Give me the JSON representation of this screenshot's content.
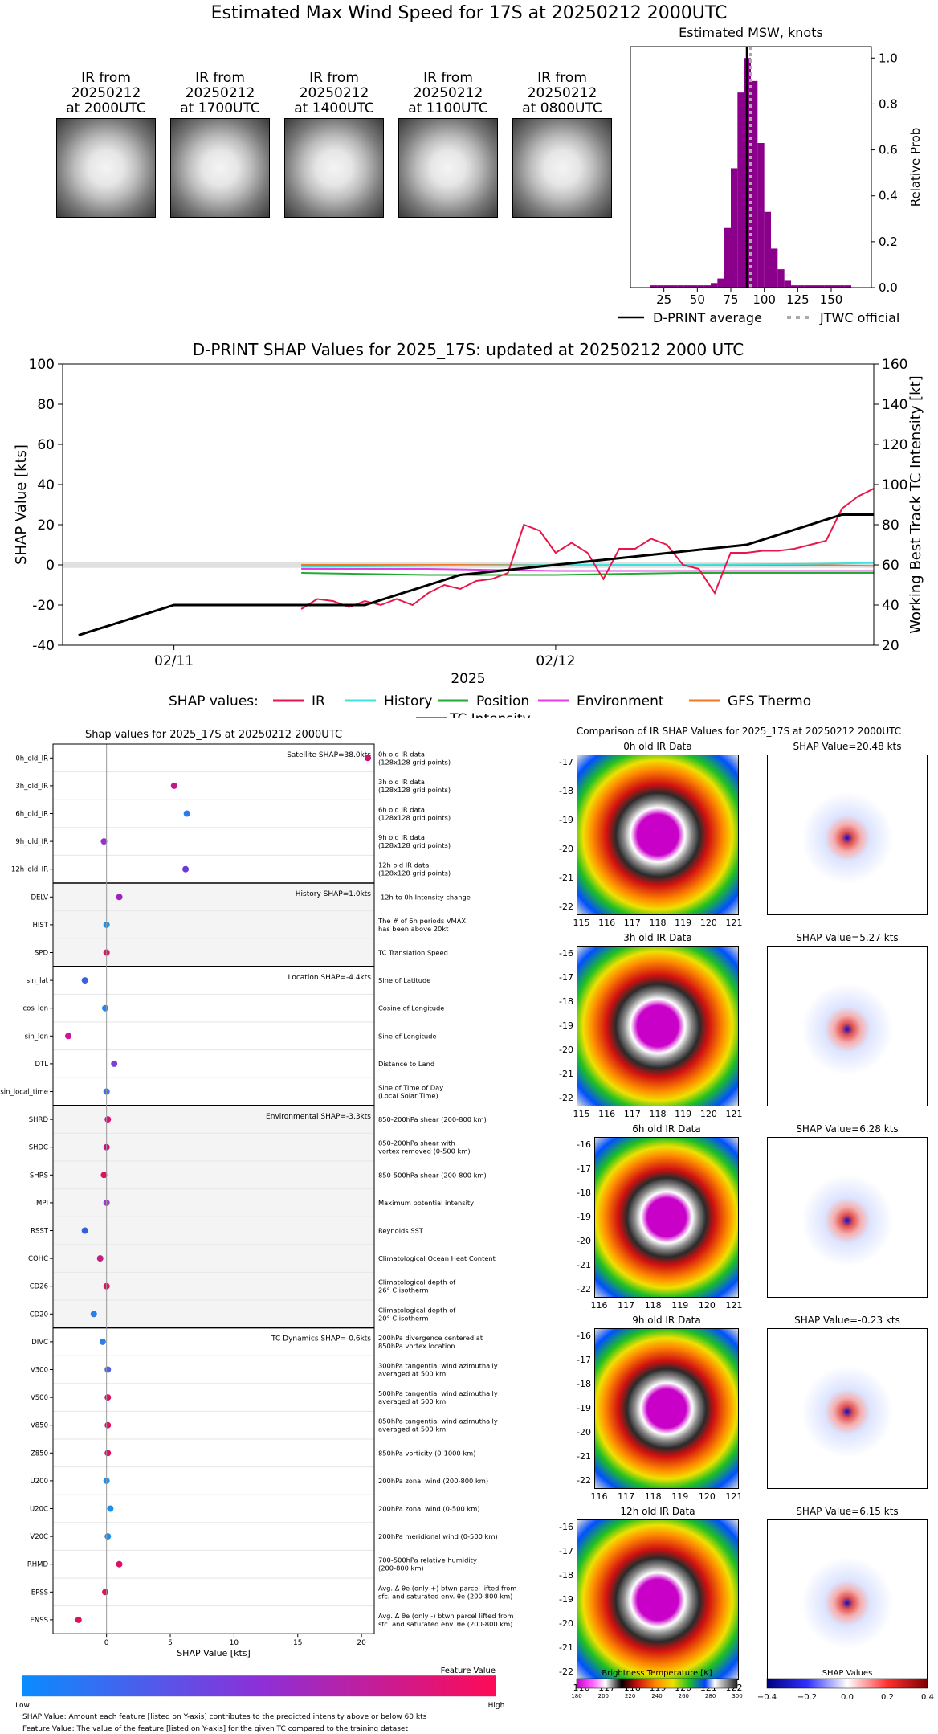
{
  "top": {
    "main_title": "Estimated Max Wind Speed for 17S at 20250212 2000UTC",
    "images": [
      {
        "label_lines": [
          "IR from",
          "20250212",
          "at 2000UTC"
        ]
      },
      {
        "label_lines": [
          "IR from",
          "20250212",
          "at 1700UTC"
        ]
      },
      {
        "label_lines": [
          "IR from",
          "20250212",
          "at 1400UTC"
        ]
      },
      {
        "label_lines": [
          "IR from",
          "20250212",
          "at 1100UTC"
        ]
      },
      {
        "label_lines": [
          "IR from",
          "20250212",
          "at 0800UTC"
        ]
      }
    ]
  },
  "histogram": {
    "type": "bar",
    "title": "Estimated MSW, knots",
    "ylabel": "Relative Prob",
    "color": "#8b008b",
    "bin_width": 5,
    "xlim": [
      0,
      180
    ],
    "ylim": [
      0,
      1.05
    ],
    "x_ticks": [
      25,
      50,
      75,
      100,
      125,
      150
    ],
    "y_ticks": [
      "0.0",
      "0.2",
      "0.4",
      "0.6",
      "0.8",
      "1.0"
    ],
    "bins": [
      {
        "x": 15,
        "y": 0.01
      },
      {
        "x": 20,
        "y": 0.01
      },
      {
        "x": 25,
        "y": 0.01
      },
      {
        "x": 30,
        "y": 0.01
      },
      {
        "x": 35,
        "y": 0.01
      },
      {
        "x": 40,
        "y": 0.01
      },
      {
        "x": 45,
        "y": 0.01
      },
      {
        "x": 50,
        "y": 0.01
      },
      {
        "x": 55,
        "y": 0.01
      },
      {
        "x": 60,
        "y": 0.02
      },
      {
        "x": 65,
        "y": 0.04
      },
      {
        "x": 70,
        "y": 0.26
      },
      {
        "x": 75,
        "y": 0.52
      },
      {
        "x": 80,
        "y": 0.85
      },
      {
        "x": 85,
        "y": 1.0
      },
      {
        "x": 90,
        "y": 0.9
      },
      {
        "x": 95,
        "y": 0.63
      },
      {
        "x": 100,
        "y": 0.33
      },
      {
        "x": 105,
        "y": 0.17
      },
      {
        "x": 110,
        "y": 0.08
      },
      {
        "x": 115,
        "y": 0.03
      },
      {
        "x": 120,
        "y": 0.01
      },
      {
        "x": 125,
        "y": 0.01
      },
      {
        "x": 130,
        "y": 0.01
      },
      {
        "x": 135,
        "y": 0.01
      },
      {
        "x": 140,
        "y": 0.01
      },
      {
        "x": 145,
        "y": 0.01
      },
      {
        "x": 150,
        "y": 0.01
      },
      {
        "x": 155,
        "y": 0.01
      },
      {
        "x": 160,
        "y": 0.01
      }
    ],
    "dprint_average": 87,
    "jtwc_official": 90,
    "legend": [
      "D-PRINT average",
      "JTWC official"
    ]
  },
  "shap_timeseries": {
    "type": "line",
    "title": "D-PRINT SHAP Values for 2025_17S: updated at 20250212 2000 UTC",
    "ylabel_left": "SHAP Value [kts]",
    "ylabel_right": "Working Best Track TC Intensity [kt]",
    "xlabel": "2025",
    "x_tick_labels": [
      "02/11",
      "02/12"
    ],
    "x_tick_hours": [
      24,
      48
    ],
    "xlim_hours": [
      17,
      68
    ],
    "ylim_left": [
      -40,
      100
    ],
    "ylim_right": [
      20,
      160
    ],
    "y_ticks_left": [
      -40,
      -20,
      0,
      20,
      40,
      60,
      80,
      100
    ],
    "y_ticks_right": [
      20,
      40,
      60,
      80,
      100,
      120,
      140,
      160
    ],
    "legend_prefix": "SHAP values:",
    "series": [
      {
        "name": "IR",
        "color": "#e8174a",
        "hours": [
          32,
          33,
          34,
          35,
          36,
          37,
          38,
          39,
          40,
          41,
          42,
          43,
          44,
          45,
          46,
          47,
          48,
          49,
          50,
          51,
          52,
          53,
          54,
          55,
          56,
          57,
          58,
          59,
          60,
          61,
          62,
          63,
          64,
          65,
          66,
          67,
          68
        ],
        "values": [
          -22,
          -17,
          -18,
          -21,
          -18,
          -20,
          -17,
          -20,
          -14,
          -10,
          -12,
          -8,
          -7,
          -4,
          20,
          17,
          6,
          11,
          6,
          -7,
          8,
          8,
          13,
          10,
          0,
          -2,
          -14,
          6,
          6,
          7,
          7,
          8,
          10,
          12,
          28,
          34,
          38
        ]
      },
      {
        "name": "History",
        "color": "#40e0e0",
        "hours": [
          32,
          40,
          48,
          56,
          64,
          68
        ],
        "values": [
          -1,
          -0.5,
          0,
          0,
          0.5,
          1
        ]
      },
      {
        "name": "Position",
        "color": "#22aa33",
        "hours": [
          32,
          40,
          48,
          56,
          64,
          68
        ],
        "values": [
          -4,
          -5,
          -5,
          -4,
          -4,
          -4
        ]
      },
      {
        "name": "Environment",
        "color": "#e040e0",
        "hours": [
          32,
          40,
          48,
          56,
          64,
          68
        ],
        "values": [
          -2,
          -2,
          -3,
          -3,
          -3,
          -3
        ]
      },
      {
        "name": "GFS Thermo",
        "color": "#f07820",
        "hours": [
          32,
          40,
          48,
          56,
          64,
          68
        ],
        "values": [
          0,
          0,
          0,
          0,
          0,
          -0.5
        ]
      }
    ],
    "intensity": {
      "name": "TC Intensity",
      "color": "#000000",
      "hours": [
        18,
        24,
        36,
        42,
        48,
        54,
        60,
        66,
        68
      ],
      "values": [
        25,
        40,
        40,
        55,
        60,
        65,
        70,
        85,
        85
      ]
    }
  },
  "shap_dots": {
    "type": "scatter",
    "title": "Shap values for 2025_17S at 20250212 2000UTC",
    "xlabel": "SHAP Value [kts]",
    "xlim": [
      -4.2,
      21
    ],
    "x_ticks": [
      0,
      5,
      10,
      15,
      20
    ],
    "groups": [
      {
        "label": "Satellite SHAP=38.0kts",
        "shaded": false,
        "features": [
          {
            "name": "0h_old_IR",
            "value": 20.5,
            "desc": [
              "0h old IR data",
              "(128x128 grid points)"
            ],
            "color": "#d0106a"
          },
          {
            "name": "3h_old_IR",
            "value": 5.3,
            "desc": [
              "3h old IR data",
              "(128x128 grid points)"
            ],
            "color": "#c0188a"
          },
          {
            "name": "6h_old_IR",
            "value": 6.3,
            "desc": [
              "6h old IR data",
              "(128x128 grid points)"
            ],
            "color": "#2a7ae8"
          },
          {
            "name": "9h_old_IR",
            "value": -0.2,
            "desc": [
              "9h old IR data",
              "(128x128 grid points)"
            ],
            "color": "#9a30c8"
          },
          {
            "name": "12h_old_IR",
            "value": 6.2,
            "desc": [
              "12h old IR data",
              "(128x128 grid points)"
            ],
            "color": "#6a3ad8"
          }
        ]
      },
      {
        "label": "History SHAP=1.0kts",
        "shaded": true,
        "features": [
          {
            "name": "DELV",
            "value": 1.0,
            "desc": [
              "-12h to 0h Intensity change"
            ],
            "color": "#a020c0"
          },
          {
            "name": "HIST",
            "value": 0.0,
            "desc": [
              "The # of 6h periods VMAX",
              "has been above 20kt"
            ],
            "color": "#1890f0"
          },
          {
            "name": "SPD",
            "value": 0.0,
            "desc": [
              "TC Translation Speed"
            ],
            "color": "#e01060"
          }
        ]
      },
      {
        "label": "Location SHAP=-4.4kts",
        "shaded": false,
        "features": [
          {
            "name": "sin_lat",
            "value": -1.7,
            "desc": [
              "Sine of Latitude"
            ],
            "color": "#3a60e0"
          },
          {
            "name": "cos_lon",
            "value": -0.1,
            "desc": [
              "Cosine of Longitude"
            ],
            "color": "#1a88f0"
          },
          {
            "name": "sin_lon",
            "value": -3.0,
            "desc": [
              "Sine of Longitude"
            ],
            "color": "#d010a0"
          },
          {
            "name": "DTL",
            "value": 0.6,
            "desc": [
              "Distance to Land"
            ],
            "color": "#7a40d8"
          },
          {
            "name": "sin_local_time",
            "value": 0.0,
            "desc": [
              "Sine of Time of Day",
              "(Local Solar Time)"
            ],
            "color": "#3a70e8"
          }
        ]
      },
      {
        "label": "Environmental SHAP=-3.3kts",
        "shaded": true,
        "features": [
          {
            "name": "SHRD",
            "value": 0.1,
            "desc": [
              "850-200hPa shear (200-800 km)"
            ],
            "color": "#e01070"
          },
          {
            "name": "SHDC",
            "value": 0.0,
            "desc": [
              "850-200hPa shear with",
              "vortex removed (0-500 km)"
            ],
            "color": "#d01080"
          },
          {
            "name": "SHRS",
            "value": -0.2,
            "desc": [
              "850-500hPa shear (200-800 km)"
            ],
            "color": "#e01060"
          },
          {
            "name": "MPI",
            "value": 0.0,
            "desc": [
              "Maximum potential intensity"
            ],
            "color": "#9a40c8"
          },
          {
            "name": "RSST",
            "value": -1.7,
            "desc": [
              "Reynolds SST"
            ],
            "color": "#3060e0"
          },
          {
            "name": "COHC",
            "value": -0.5,
            "desc": [
              "Climatological Ocean Heat Content"
            ],
            "color": "#c02080"
          },
          {
            "name": "CD26",
            "value": 0.0,
            "desc": [
              "Climatological depth of",
              "26° C isotherm"
            ],
            "color": "#e01060"
          },
          {
            "name": "CD20",
            "value": -1.0,
            "desc": [
              "Climatological depth of",
              "20° C isotherm"
            ],
            "color": "#2a80e8"
          }
        ]
      },
      {
        "label": "TC Dynamics SHAP=-0.6kts",
        "shaded": false,
        "features": [
          {
            "name": "DIVC",
            "value": -0.3,
            "desc": [
              "200hPa divergence centered at",
              "850hPa vortex location"
            ],
            "color": "#2a80e8"
          },
          {
            "name": "V300",
            "value": 0.1,
            "desc": [
              "300hPa tangential wind azimuthally",
              "averaged at 500 km"
            ],
            "color": "#5060e0"
          },
          {
            "name": "V500",
            "value": 0.1,
            "desc": [
              "500hPa tangential wind azimuthally",
              "averaged at 500 km"
            ],
            "color": "#e01060"
          },
          {
            "name": "V850",
            "value": 0.1,
            "desc": [
              "850hPa tangential wind azimuthally",
              "averaged at 500 km"
            ],
            "color": "#e01060"
          },
          {
            "name": "Z850",
            "value": 0.1,
            "desc": [
              "850hPa vorticity (0-1000 km)"
            ],
            "color": "#e01060"
          },
          {
            "name": "U200",
            "value": 0.0,
            "desc": [
              "200hPa zonal wind (200-800 km)"
            ],
            "color": "#1a90f0"
          },
          {
            "name": "U20C",
            "value": 0.3,
            "desc": [
              "200hPa zonal wind (0-500 km)"
            ],
            "color": "#1a90f0"
          },
          {
            "name": "V20C",
            "value": 0.1,
            "desc": [
              "200hPa meridional wind (0-500 km)"
            ],
            "color": "#1a90f0"
          },
          {
            "name": "RHMD",
            "value": 1.0,
            "desc": [
              "700-500hPa relative humidity",
              "(200-800 km)"
            ],
            "color": "#e01060"
          },
          {
            "name": "EPSS",
            "value": -0.1,
            "desc": [
              "Avg. Δ θe (only +) btwn parcel lifted from",
              "sfc. and saturated env. θe (200-800 km)"
            ],
            "color": "#e01060"
          },
          {
            "name": "ENSS",
            "value": -2.2,
            "desc": [
              "Avg. Δ θe (only -) btwn parcel lifted from",
              "sfc. and saturated env. θe (200-800 km)"
            ],
            "color": "#e01060"
          }
        ]
      }
    ],
    "colorbar": {
      "title": "Feature Value",
      "low": "Low",
      "high": "High",
      "from": "#0a8cff",
      "to": "#ff0a55"
    },
    "footnotes": [
      "SHAP Value: Amount each feature [listed on Y-axis] contributes to the predicted intensity above or below 60 kts",
      "Feature Value: The value of the feature [listed on Y-axis] for the given TC compared to the training dataset"
    ]
  },
  "ir_comparison": {
    "title": "Comparison of IR SHAP Values for 2025_17S at 20250212 2000UTC",
    "rows": [
      {
        "ir_title": "0h old IR Data",
        "shap_title": "SHAP Value=20.48 kts",
        "y_ticks": [
          "-17",
          "-18",
          "-19",
          "-20",
          "-21",
          "-22"
        ],
        "x_ticks": [
          "115",
          "116",
          "117",
          "118",
          "119",
          "120",
          "121"
        ]
      },
      {
        "ir_title": "3h old IR Data",
        "shap_title": "SHAP Value=5.27 kts",
        "y_ticks": [
          "-16",
          "-17",
          "-18",
          "-19",
          "-20",
          "-21",
          "-22"
        ],
        "x_ticks": [
          "115",
          "116",
          "117",
          "118",
          "119",
          "120",
          "121"
        ]
      },
      {
        "ir_title": "6h old IR Data",
        "shap_title": "SHAP Value=6.28 kts",
        "y_ticks": [
          "-16",
          "-17",
          "-18",
          "-19",
          "-20",
          "-21",
          "-22"
        ],
        "x_ticks": [
          "116",
          "117",
          "118",
          "119",
          "120",
          "121"
        ]
      },
      {
        "ir_title": "9h old IR Data",
        "shap_title": "SHAP Value=-0.23 kts",
        "y_ticks": [
          "-16",
          "-17",
          "-18",
          "-19",
          "-20",
          "-21",
          "-22"
        ],
        "x_ticks": [
          "116",
          "117",
          "118",
          "119",
          "120",
          "121"
        ]
      },
      {
        "ir_title": "12h old IR Data",
        "shap_title": "SHAP Value=6.15 kts",
        "y_ticks": [
          "-16",
          "-17",
          "-18",
          "-19",
          "-20",
          "-21",
          "-22"
        ],
        "x_ticks": [
          "116",
          "117",
          "118",
          "119",
          "120",
          "121",
          "122"
        ]
      }
    ],
    "bt_colorbar": {
      "title": "Brightness Temperature [K]",
      "ticks": [
        "180",
        "200",
        "220",
        "240",
        "260",
        "280",
        "300"
      ]
    },
    "shap_colorbar": {
      "title": "SHAP Values",
      "ticks": [
        "−0.4",
        "−0.2",
        "0.0",
        "0.2",
        "0.4"
      ]
    }
  }
}
